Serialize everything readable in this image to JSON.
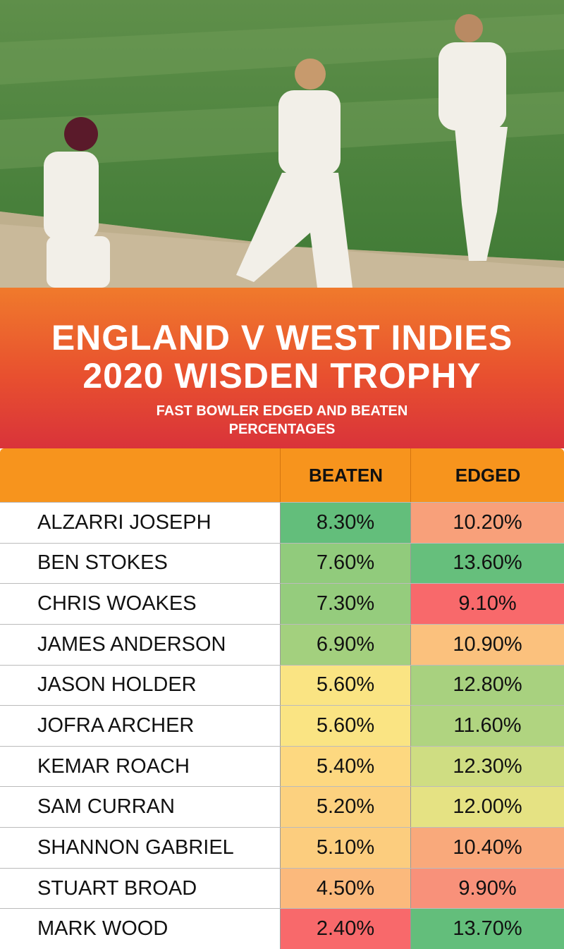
{
  "header": {
    "title": [
      "ENGLAND V WEST INDIES",
      "2020 WISDEN TROPHY"
    ],
    "subtitle": "FAST BOWLER EDGED AND BEATEN PERCENTAGES"
  },
  "table": {
    "columns": [
      "BEATEN",
      "EDGED"
    ],
    "rows": [
      [
        "ALZARRI JOSEPH",
        "8.30%",
        "10.20%"
      ],
      [
        "BEN STOKES",
        "7.60%",
        "13.60%"
      ],
      [
        "CHRIS WOAKES",
        "7.30%",
        "9.10%"
      ],
      [
        "JAMES ANDERSON",
        "6.90%",
        "10.90%"
      ],
      [
        "JASON HOLDER",
        "5.60%",
        "12.80%"
      ],
      [
        "JOFRA ARCHER",
        "5.60%",
        "11.60%"
      ],
      [
        "KEMAR ROACH",
        "5.40%",
        "12.30%"
      ],
      [
        "SAM CURRAN",
        "5.20%",
        "12.00%"
      ],
      [
        "SHANNON GABRIEL",
        "5.10%",
        "10.40%"
      ],
      [
        "STUART BROAD",
        "4.50%",
        "9.90%"
      ],
      [
        "MARK WOOD",
        "2.40%",
        "13.70%"
      ]
    ],
    "cell_colors": [
      [
        "#63be7b",
        "#f8a07a"
      ],
      [
        "#91cb7c",
        "#66bf7c"
      ],
      [
        "#95cc7d",
        "#f8696b"
      ],
      [
        "#a3d07e",
        "#fbc17d"
      ],
      [
        "#fae483",
        "#a8d17f"
      ],
      [
        "#fae483",
        "#b0d480"
      ],
      [
        "#fdd880",
        "#cfdd82"
      ],
      [
        "#fcd17f",
        "#e5e283"
      ],
      [
        "#fccd7e",
        "#f9a97b"
      ],
      [
        "#fbb97c",
        "#f8917a"
      ],
      [
        "#f8696b",
        "#63be7b"
      ]
    ]
  }
}
